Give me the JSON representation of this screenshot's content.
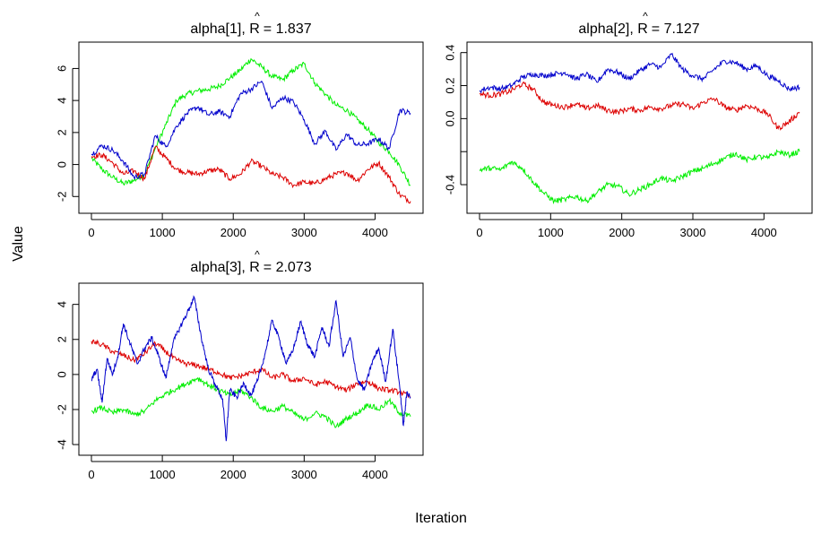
{
  "figure": {
    "xlabel": "Iteration",
    "ylabel": "Value"
  },
  "chart_data": [
    {
      "type": "line",
      "title": "alpha[1], R̂ = 1.837",
      "title_prefix": "alpha[1], ",
      "title_rhat": "R",
      "title_hat": "^",
      "title_value": "= 1.837",
      "xlim": [
        0,
        4500
      ],
      "ylim": [
        -2.6,
        7.2
      ],
      "x_ticks": [
        0,
        1000,
        2000,
        3000,
        4000
      ],
      "y_ticks": [
        -2,
        0,
        2,
        4,
        6
      ],
      "series": [
        {
          "color": "#00ee00",
          "x": [
            0,
            150,
            300,
            450,
            600,
            750,
            900,
            1050,
            1200,
            1350,
            1500,
            1650,
            1800,
            1950,
            2100,
            2250,
            2400,
            2550,
            2700,
            2850,
            3000,
            3150,
            3300,
            3450,
            3600,
            3750,
            3900,
            4050,
            4200,
            4350,
            4500
          ],
          "values": [
            0.4,
            -0.3,
            -0.8,
            -1.2,
            -1.0,
            -0.6,
            1.0,
            2.5,
            4.0,
            4.4,
            4.6,
            4.7,
            4.9,
            5.4,
            5.9,
            6.6,
            6.1,
            5.5,
            5.3,
            5.9,
            6.3,
            5.1,
            4.4,
            3.7,
            3.4,
            2.8,
            2.2,
            1.4,
            0.8,
            -0.1,
            -1.3
          ]
        },
        {
          "color": "#dd0000",
          "x": [
            0,
            150,
            300,
            450,
            600,
            750,
            900,
            1050,
            1200,
            1350,
            1500,
            1650,
            1800,
            1950,
            2100,
            2250,
            2400,
            2550,
            2700,
            2850,
            3000,
            3150,
            3300,
            3450,
            3600,
            3750,
            3900,
            4050,
            4200,
            4350,
            4500
          ],
          "values": [
            0.5,
            0.6,
            0.1,
            -0.6,
            -0.4,
            -0.9,
            1.1,
            0.4,
            -0.3,
            -0.5,
            -0.6,
            -0.4,
            -0.3,
            -0.9,
            -0.6,
            0.2,
            -0.1,
            -0.6,
            -0.8,
            -1.3,
            -1.1,
            -1.2,
            -0.9,
            -0.6,
            -0.5,
            -1.0,
            -0.3,
            0.1,
            -0.8,
            -1.9,
            -2.3
          ]
        },
        {
          "color": "#0000cc",
          "x": [
            0,
            150,
            300,
            450,
            600,
            750,
            900,
            1050,
            1200,
            1350,
            1500,
            1650,
            1800,
            1950,
            2100,
            2250,
            2400,
            2550,
            2700,
            2850,
            3000,
            3150,
            3300,
            3450,
            3600,
            3750,
            3900,
            4050,
            4200,
            4350,
            4500
          ],
          "values": [
            0.6,
            1.2,
            0.9,
            0.2,
            -0.8,
            -0.6,
            1.8,
            1.1,
            2.4,
            3.2,
            3.6,
            3.1,
            3.3,
            3.0,
            4.4,
            4.7,
            5.2,
            3.5,
            4.2,
            3.9,
            2.8,
            1.3,
            2.1,
            0.9,
            1.9,
            1.2,
            1.3,
            1.6,
            1.0,
            3.4,
            3.2
          ]
        }
      ]
    },
    {
      "type": "line",
      "title": "alpha[2], R̂ = 7.127",
      "title_prefix": "alpha[2], ",
      "title_rhat": "R",
      "title_hat": "^",
      "title_value": "= 7.127",
      "xlim": [
        0,
        4500
      ],
      "ylim": [
        -0.53,
        0.42
      ],
      "x_ticks": [
        0,
        1000,
        2000,
        3000,
        4000
      ],
      "y_ticks": [
        -0.4,
        -0.2,
        0.0,
        0.2,
        0.4
      ],
      "y_tick_labels": [
        "-0.4",
        "",
        "0.0",
        "0.2",
        "0.4"
      ],
      "series": [
        {
          "color": "#0000cc",
          "x": [
            0,
            150,
            300,
            450,
            600,
            750,
            900,
            1050,
            1200,
            1350,
            1500,
            1650,
            1800,
            1950,
            2100,
            2250,
            2400,
            2550,
            2700,
            2850,
            3000,
            3150,
            3300,
            3450,
            3600,
            3750,
            3900,
            4050,
            4200,
            4350,
            4500
          ],
          "values": [
            0.17,
            0.19,
            0.18,
            0.2,
            0.25,
            0.27,
            0.26,
            0.27,
            0.28,
            0.24,
            0.27,
            0.22,
            0.3,
            0.28,
            0.24,
            0.29,
            0.33,
            0.31,
            0.39,
            0.3,
            0.26,
            0.24,
            0.3,
            0.35,
            0.34,
            0.3,
            0.32,
            0.26,
            0.23,
            0.18,
            0.19
          ]
        },
        {
          "color": "#dd0000",
          "x": [
            0,
            150,
            300,
            450,
            600,
            750,
            900,
            1050,
            1200,
            1350,
            1500,
            1650,
            1800,
            1950,
            2100,
            2250,
            2400,
            2550,
            2700,
            2850,
            3000,
            3150,
            3300,
            3450,
            3600,
            3750,
            3900,
            4050,
            4200,
            4350,
            4500
          ],
          "values": [
            0.15,
            0.14,
            0.15,
            0.17,
            0.21,
            0.18,
            0.1,
            0.08,
            0.07,
            0.09,
            0.06,
            0.08,
            0.05,
            0.04,
            0.06,
            0.05,
            0.07,
            0.06,
            0.08,
            0.09,
            0.06,
            0.1,
            0.12,
            0.07,
            0.05,
            0.08,
            0.06,
            0.03,
            -0.06,
            -0.02,
            0.04
          ]
        },
        {
          "color": "#00ee00",
          "x": [
            0,
            150,
            300,
            450,
            600,
            750,
            900,
            1050,
            1200,
            1350,
            1500,
            1650,
            1800,
            1950,
            2100,
            2250,
            2400,
            2550,
            2700,
            2850,
            3000,
            3150,
            3300,
            3450,
            3600,
            3750,
            3900,
            4050,
            4200,
            4350,
            4500
          ],
          "values": [
            -0.31,
            -0.3,
            -0.31,
            -0.26,
            -0.3,
            -0.38,
            -0.45,
            -0.5,
            -0.49,
            -0.47,
            -0.5,
            -0.45,
            -0.4,
            -0.41,
            -0.46,
            -0.43,
            -0.4,
            -0.36,
            -0.38,
            -0.35,
            -0.32,
            -0.3,
            -0.27,
            -0.24,
            -0.21,
            -0.25,
            -0.23,
            -0.24,
            -0.2,
            -0.22,
            -0.2
          ]
        }
      ]
    },
    {
      "type": "line",
      "title": "alpha[3], R̂ = 2.073",
      "title_prefix": "alpha[3], ",
      "title_rhat": "R",
      "title_hat": "^",
      "title_value": "= 2.073",
      "xlim": [
        0,
        4500
      ],
      "ylim": [
        -4.2,
        4.8
      ],
      "x_ticks": [
        0,
        1000,
        2000,
        3000,
        4000
      ],
      "y_ticks": [
        -4,
        -2,
        0,
        2,
        4
      ],
      "series": [
        {
          "color": "#dd0000",
          "x": [
            0,
            150,
            300,
            450,
            600,
            750,
            900,
            1050,
            1200,
            1350,
            1500,
            1650,
            1800,
            1950,
            2100,
            2250,
            2400,
            2550,
            2700,
            2850,
            3000,
            3150,
            3300,
            3450,
            3600,
            3750,
            3900,
            4050,
            4200,
            4350,
            4500
          ],
          "values": [
            1.9,
            1.7,
            1.3,
            1.1,
            0.8,
            1.2,
            1.8,
            1.3,
            0.8,
            0.6,
            0.5,
            0.3,
            0.1,
            -0.2,
            -0.1,
            0.1,
            0.3,
            -0.2,
            0.0,
            -0.4,
            -0.2,
            -0.6,
            -0.4,
            -0.7,
            -0.9,
            -0.5,
            -0.4,
            -0.8,
            -0.9,
            -1.0,
            -1.3
          ]
        },
        {
          "color": "#00ee00",
          "x": [
            0,
            150,
            300,
            450,
            600,
            750,
            900,
            1050,
            1200,
            1350,
            1500,
            1650,
            1800,
            1950,
            2100,
            2250,
            2400,
            2550,
            2700,
            2850,
            3000,
            3150,
            3300,
            3450,
            3600,
            3750,
            3900,
            4050,
            4200,
            4350,
            4500
          ],
          "values": [
            -2.1,
            -1.9,
            -2.2,
            -2.0,
            -2.3,
            -2.1,
            -1.5,
            -1.1,
            -0.8,
            -0.5,
            -0.2,
            -0.6,
            -0.9,
            -1.2,
            -0.9,
            -1.3,
            -1.9,
            -2.1,
            -1.8,
            -2.2,
            -2.6,
            -2.2,
            -2.4,
            -3.0,
            -2.5,
            -2.2,
            -1.7,
            -2.0,
            -1.5,
            -2.2,
            -2.4
          ]
        },
        {
          "color": "#0000cc",
          "x": [
            0,
            80,
            150,
            220,
            300,
            380,
            450,
            550,
            650,
            750,
            850,
            950,
            1050,
            1150,
            1250,
            1350,
            1450,
            1550,
            1650,
            1750,
            1850,
            1900,
            1950,
            2050,
            2150,
            2250,
            2350,
            2450,
            2550,
            2650,
            2750,
            2850,
            2950,
            3050,
            3150,
            3250,
            3350,
            3450,
            3550,
            3650,
            3750,
            3850,
            3950,
            4050,
            4150,
            4250,
            4350,
            4400,
            4450,
            4500
          ],
          "values": [
            -0.3,
            0.3,
            -1.6,
            0.9,
            0.0,
            1.2,
            2.9,
            1.7,
            0.6,
            1.5,
            2.1,
            1.0,
            -0.2,
            1.8,
            2.7,
            3.5,
            4.4,
            2.1,
            0.3,
            -0.6,
            -1.4,
            -3.8,
            -0.9,
            -1.3,
            -0.5,
            -1.2,
            -0.3,
            1.2,
            3.1,
            2.0,
            0.6,
            1.5,
            3.0,
            1.7,
            1.0,
            2.7,
            1.6,
            4.2,
            1.0,
            2.1,
            -0.3,
            -0.9,
            0.6,
            1.5,
            -0.4,
            2.6,
            -0.8,
            -2.9,
            -1.0,
            -1.3
          ]
        }
      ]
    }
  ]
}
